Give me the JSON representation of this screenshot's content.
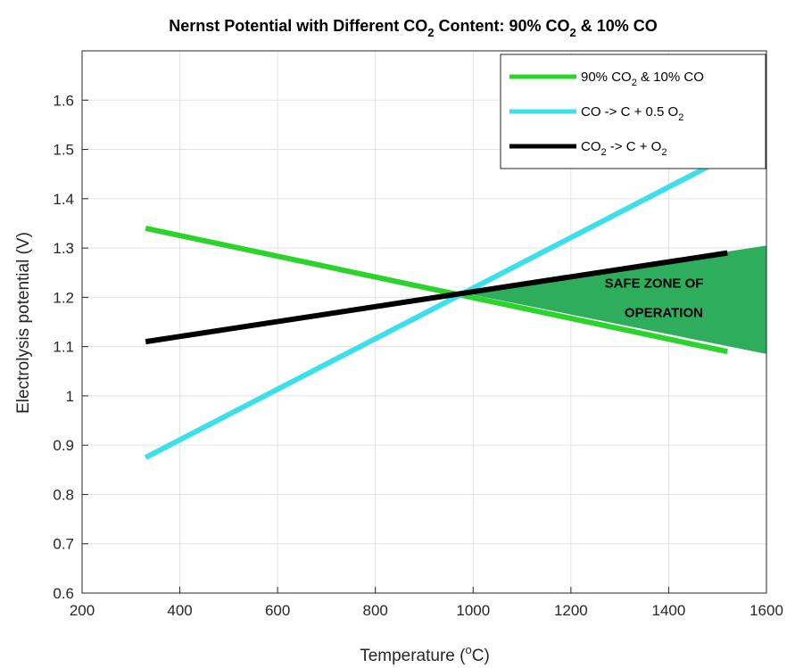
{
  "chart_data": {
    "type": "line",
    "title": {
      "pre": "Nernst Potential with Different CO",
      "s1": "2",
      "mid": " Content: 90% CO",
      "s2": "2",
      "post": " & 10% CO"
    },
    "xlabel": {
      "pre": "Temperature (",
      "sup": "o",
      "post": "C)"
    },
    "ylabel": "Electrolysis potential (V)",
    "xlim": [
      200,
      1600
    ],
    "ylim": [
      0.6,
      1.7
    ],
    "xticks": [
      "200",
      "400",
      "600",
      "800",
      "1000",
      "1200",
      "1400",
      "1600"
    ],
    "yticks": [
      "0.6",
      "0.7",
      "0.8",
      "0.9",
      "1",
      "1.1",
      "1.2",
      "1.3",
      "1.4",
      "1.5",
      "1.6"
    ],
    "grid": true,
    "legend_position": "top-right",
    "series": [
      {
        "name": {
          "pre": "90% CO",
          "sub": "2",
          "post": " & 10% CO"
        },
        "color": "#2bd42b",
        "x": [
          330,
          1520
        ],
        "y": [
          1.34,
          1.09
        ]
      },
      {
        "name": {
          "pre": "CO -> C + 0.5 O",
          "sub": "2",
          "post": ""
        },
        "color": "#3de0e8",
        "x": [
          330,
          1500
        ],
        "y": [
          0.875,
          1.475
        ]
      },
      {
        "name": {
          "pre": "CO",
          "sub": "2",
          "post": " -> C + O",
          "sub2": "2"
        },
        "color": "#000000",
        "x": [
          330,
          1520
        ],
        "y": [
          1.11,
          1.29
        ]
      }
    ],
    "safe_zone": {
      "color": "#2ead5c",
      "polygon": [
        [
          975,
          1.21
        ],
        [
          1600,
          1.305
        ],
        [
          1600,
          1.085
        ]
      ]
    },
    "annotations": [
      {
        "text": "SAFE ZONE OF",
        "x": 1370,
        "y": 1.22
      },
      {
        "text": "OPERATION",
        "x": 1390,
        "y": 1.16
      }
    ]
  }
}
